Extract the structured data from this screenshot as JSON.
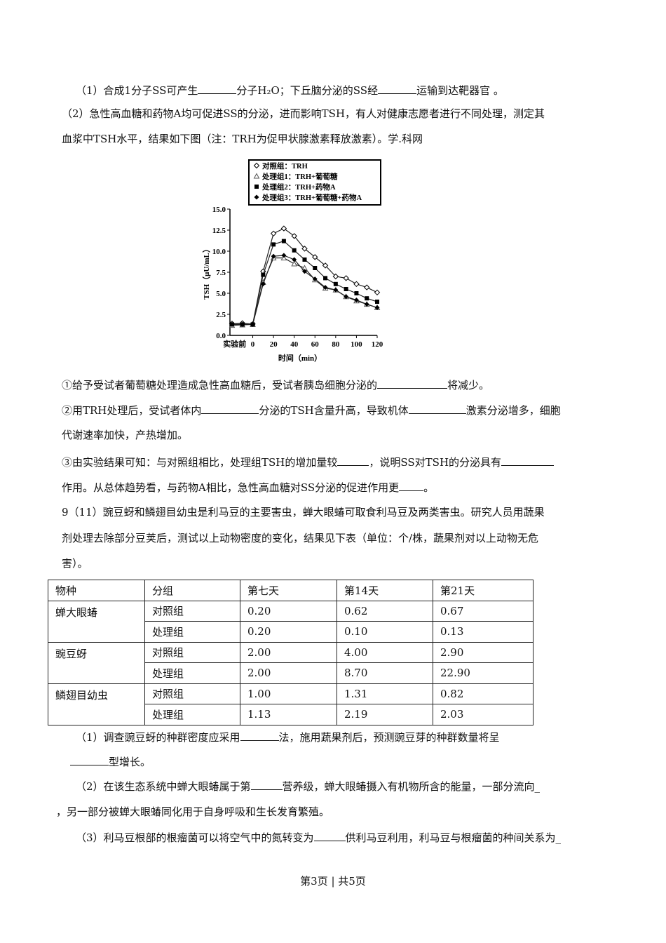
{
  "q8": {
    "l1": [
      "（1）合成1分子SS可产生",
      "分子H₂O；下丘脑分泌的SS经",
      "运输到达靶器官 。"
    ],
    "l2": "（2）急性高血糖和药物A均可促进SS的分泌，进而影响TSH，有人对健康志愿者进行不同处理，测定其",
    "l3": "血浆中TSH水平，结果如下图（注：TRH为促甲状腺激素释放激素）。学.科网",
    "s1": [
      "①给予受试者葡萄糖处理造成急性高血糖后，受试者胰岛细胞分泌的",
      "将减少。"
    ],
    "s2": [
      "②用TRH处理后，受试者体内",
      "分泌的TSH含量升高，导致机体",
      "激素分泌增多，细胞"
    ],
    "s2b": "代谢速率加快，产热增加。",
    "s3": [
      "③由实验结果可知：与对照组相比，处理组TSH的增加量较",
      "，说明SS对TSH的分泌具有"
    ],
    "s3b": [
      "作用。从总体趋势看，与药物A相比，急性高血糖对SS分泌的促进作用更",
      "。"
    ]
  },
  "chart_data": {
    "type": "line",
    "xlabel": "时间（min）",
    "ylabel": "TSH（μU/mL）",
    "ylim": [
      0,
      15
    ],
    "yticks": [
      "0.0",
      "2.5",
      "5.0",
      "7.5",
      "10.0",
      "12.5",
      "15.0"
    ],
    "xticks": [
      "实验前",
      "0",
      "20",
      "40",
      "60",
      "80",
      "100",
      "120"
    ],
    "x": [
      -20,
      -10,
      0,
      10,
      20,
      30,
      40,
      50,
      60,
      70,
      80,
      90,
      100,
      110,
      120
    ],
    "legend": "top",
    "series": [
      {
        "name": "对照组：TRH",
        "marker": "open-diamond",
        "values": [
          1.4,
          1.45,
          1.35,
          7.6,
          12.1,
          12.7,
          11.8,
          10.3,
          9.3,
          8.3,
          7.0,
          6.8,
          6.1,
          5.7,
          5.1
        ]
      },
      {
        "name": "处理组1：TRH+葡萄糖",
        "marker": "open-triangle",
        "values": [
          1.2,
          1.25,
          1.3,
          6.3,
          9.2,
          9.2,
          8.5,
          8.0,
          6.6,
          5.6,
          5.4,
          4.6,
          4.1,
          3.7,
          3.3
        ]
      },
      {
        "name": "处理组2：TRH+药物A",
        "marker": "filled-square",
        "values": [
          1.3,
          1.3,
          1.3,
          7.2,
          10.8,
          11.2,
          10.1,
          9.0,
          8.0,
          6.8,
          6.1,
          5.5,
          5.0,
          4.4,
          4.0
        ]
      },
      {
        "name": "处理组3：TRH+葡萄糖+药物A",
        "marker": "filled-diamond",
        "values": [
          1.3,
          1.3,
          1.3,
          6.1,
          9.4,
          9.5,
          9.0,
          7.6,
          6.7,
          5.7,
          5.4,
          4.6,
          4.2,
          3.7,
          3.3
        ]
      }
    ]
  },
  "q9": {
    "l1": "9（11）豌豆蚜和鳞翅目幼虫是利马豆的主要害虫，蝉大眼蝽可取食利马豆及两类害虫。研究人员用蔬果",
    "l2": "剂处理去除部分豆荚后，测试以上动物密度的变化，结果见下表（单位：个/株，蔬果剂对以上动物无危",
    "l3": "害）。",
    "table": {
      "headers": [
        "物种",
        "分组",
        "第七天",
        "第14天",
        "第21天"
      ],
      "rows": [
        {
          "species": "蝉大眼蝽",
          "groups": [
            [
              "对照组",
              "0.20",
              "0.62",
              "0.67"
            ],
            [
              "处理组",
              "0.20",
              "0.10",
              "0.13"
            ]
          ]
        },
        {
          "species": "豌豆蚜",
          "groups": [
            [
              "对照组",
              "2.00",
              "4.00",
              "2.90"
            ],
            [
              "处理组",
              "2.00",
              "8.70",
              "22.90"
            ]
          ]
        },
        {
          "species": "鳞翅目幼虫",
          "groups": [
            [
              "对照组",
              "1.00",
              "1.31",
              "0.82"
            ],
            [
              "处理组",
              "1.13",
              "2.19",
              "2.03"
            ]
          ]
        }
      ]
    },
    "p1": [
      "（1）调查豌豆蚜的种群密度应采用",
      "法，施用蔬果剂后，预测豌豆芽的种群数量将呈"
    ],
    "p1b": "型增长。",
    "p2": [
      "（2）在该生态系统中蝉大眼蝽属于第",
      "营养级，蝉大眼蝽摄入有机物所含的能量，一部分流向_"
    ],
    "p2b": "，另一部分被蝉大眼蝽同化用于自身呼吸和生长发育繁殖。",
    "p3": [
      "（3）利马豆根部的根瘤菌可以将空气中的氮转变为",
      "供利马豆利用，利马豆与根瘤菌的种间关系为_"
    ]
  },
  "footer": "第3页 | 共5页"
}
